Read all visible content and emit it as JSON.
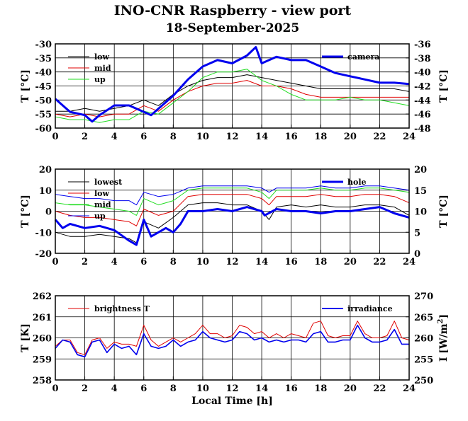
{
  "header": {
    "title": "INO-CNR Raspberry - view port",
    "subtitle": "18-September-2025"
  },
  "colors": {
    "black": "#000000",
    "red": "#e00000",
    "green": "#22dd22",
    "blue": "#0000ee"
  },
  "chart_data": [
    {
      "type": "line",
      "xlim": [
        0,
        24
      ],
      "xticks": [
        "0",
        "2",
        "4",
        "6",
        "8",
        "10",
        "12",
        "14",
        "16",
        "18",
        "20",
        "22",
        "24"
      ],
      "ylabel": "T [°C]",
      "ylim": [
        -60,
        -30
      ],
      "yticks": [
        "-30",
        "-35",
        "-40",
        "-45",
        "-50",
        "-55",
        "-60"
      ],
      "ylabel_right": "T [°C]",
      "ylim_right": [
        -48,
        -35
      ],
      "yticks_right": [
        "-36",
        "-38",
        "-40",
        "-42",
        "-44",
        "-46",
        "-48"
      ],
      "grid": true,
      "legend_left": [
        "low",
        "mid",
        "up"
      ],
      "legend_right": [
        "camera"
      ],
      "series": [
        {
          "name": "low",
          "color": "#000000",
          "axis": "left",
          "lw": 1,
          "x": [
            0,
            1,
            2,
            3,
            4,
            5,
            6,
            7,
            8,
            9,
            10,
            11,
            12,
            13,
            14,
            15,
            16,
            17,
            18,
            19,
            20,
            21,
            22,
            23,
            24
          ],
          "y": [
            -54,
            -54,
            -53,
            -54,
            -53,
            -52,
            -50,
            -52,
            -48,
            -45,
            -43,
            -42,
            -42,
            -41,
            -42,
            -43,
            -44,
            -45,
            -46,
            -46,
            -46,
            -46,
            -46,
            -46,
            -47
          ]
        },
        {
          "name": "mid",
          "color": "#e00000",
          "axis": "left",
          "lw": 1,
          "x": [
            0,
            1,
            2,
            3,
            4,
            5,
            6,
            7,
            8,
            9,
            10,
            11,
            12,
            13,
            14,
            15,
            16,
            17,
            18,
            19,
            20,
            21,
            22,
            23,
            24
          ],
          "y": [
            -55,
            -56,
            -55,
            -56,
            -55,
            -55,
            -52,
            -54,
            -50,
            -47,
            -45,
            -44,
            -44,
            -43,
            -45,
            -45,
            -46,
            -48,
            -49,
            -49,
            -49,
            -49,
            -49,
            -49,
            -49
          ]
        },
        {
          "name": "up",
          "color": "#22dd22",
          "axis": "left",
          "lw": 1,
          "x": [
            0,
            1,
            2,
            3,
            4,
            5,
            6,
            7,
            8,
            9,
            10,
            11,
            12,
            13,
            14,
            15,
            16,
            17,
            18,
            19,
            20,
            21,
            22,
            23,
            24
          ],
          "y": [
            -56,
            -57,
            -57,
            -58,
            -57,
            -57,
            -54,
            -55,
            -51,
            -47,
            -42,
            -40,
            -40,
            -39,
            -43,
            -45,
            -48,
            -50,
            -50,
            -50,
            -49,
            -50,
            -50,
            -51,
            -52
          ]
        },
        {
          "name": "camera",
          "color": "#0000ee",
          "axis": "right",
          "lw": 3,
          "x": [
            0,
            1,
            2,
            2.5,
            3,
            4,
            5,
            6,
            6.5,
            7,
            8,
            9,
            10,
            11,
            12,
            13,
            13.6,
            14,
            15,
            16,
            17,
            18,
            19,
            20,
            21,
            22,
            23,
            24
          ],
          "y": [
            -43.5,
            -45.5,
            -46,
            -47,
            -46,
            -44.5,
            -44.5,
            -45.5,
            -46,
            -45,
            -43,
            -40.5,
            -38.5,
            -37.5,
            -38,
            -36.8,
            -35.5,
            -38,
            -37,
            -37.5,
            -37.5,
            -38.5,
            -39.5,
            -40,
            -40.5,
            -41,
            -41,
            -41.2
          ]
        }
      ]
    },
    {
      "type": "line",
      "xlim": [
        0,
        24
      ],
      "xticks": [
        "0",
        "2",
        "4",
        "6",
        "8",
        "10",
        "12",
        "14",
        "16",
        "18",
        "20",
        "22",
        "24"
      ],
      "ylabel": "T [°C]",
      "ylim": [
        -20,
        20
      ],
      "yticks": [
        "20",
        "10",
        "0",
        "-10",
        "-20"
      ],
      "ylabel_right": "T [°C]",
      "ylim_right": [
        0,
        20
      ],
      "yticks_right": [
        "20",
        "15",
        "10",
        "5",
        "0"
      ],
      "grid": true,
      "legend_left": [
        "lowest",
        "low",
        "mid",
        "up"
      ],
      "legend_right": [
        "hole"
      ],
      "series": [
        {
          "name": "lowest",
          "color": "#000000",
          "axis": "left",
          "lw": 1,
          "x": [
            0,
            1,
            2,
            3,
            4,
            5,
            5.5,
            6,
            7,
            8,
            9,
            10,
            11,
            12,
            13,
            14,
            14.5,
            15,
            16,
            17,
            18,
            19,
            20,
            21,
            22,
            23,
            24
          ],
          "y": [
            -10,
            -12,
            -12,
            -11,
            -12,
            -13,
            -15,
            -5,
            -8,
            -3,
            3,
            4,
            4,
            3,
            3,
            0,
            -4,
            2,
            3,
            2,
            3,
            2,
            2,
            3,
            3,
            2,
            -2
          ]
        },
        {
          "name": "low",
          "color": "#e00000",
          "axis": "left",
          "lw": 1,
          "x": [
            0,
            1,
            2,
            3,
            4,
            5,
            5.5,
            6,
            7,
            8,
            9,
            10,
            11,
            12,
            13,
            14,
            14.5,
            15,
            16,
            17,
            18,
            19,
            20,
            21,
            22,
            23,
            24
          ],
          "y": [
            0,
            -2,
            -3,
            -3,
            -4,
            -5,
            -7,
            1,
            -2,
            0,
            7,
            8,
            8,
            8,
            8,
            6,
            3,
            7,
            7,
            7,
            8,
            7,
            7,
            8,
            8,
            7,
            4
          ]
        },
        {
          "name": "mid",
          "color": "#22dd22",
          "axis": "left",
          "lw": 1,
          "x": [
            0,
            1,
            2,
            3,
            4,
            5,
            5.5,
            6,
            7,
            8,
            9,
            10,
            11,
            12,
            13,
            14,
            14.5,
            15,
            16,
            17,
            18,
            19,
            20,
            21,
            22,
            23,
            24
          ],
          "y": [
            4,
            3,
            3,
            2,
            1,
            0,
            -2,
            6,
            3,
            5,
            10,
            11,
            11,
            11,
            11,
            9,
            6,
            10,
            10,
            10,
            11,
            10,
            10,
            11,
            11,
            10,
            9
          ]
        },
        {
          "name": "up",
          "color": "#0000ee",
          "axis": "left",
          "lw": 1,
          "x": [
            0,
            1,
            2,
            3,
            4,
            5,
            5.5,
            6,
            7,
            8,
            9,
            10,
            11,
            12,
            13,
            14,
            14.5,
            15,
            16,
            17,
            18,
            19,
            20,
            21,
            22,
            23,
            24
          ],
          "y": [
            8,
            7,
            6,
            6,
            5,
            5,
            3,
            9,
            7,
            8,
            11,
            12,
            12,
            12,
            12,
            11,
            9,
            11,
            11,
            11,
            12,
            11,
            11,
            12,
            12,
            11,
            10
          ]
        },
        {
          "name": "hole",
          "color": "#0000ee",
          "axis": "right",
          "lw": 3,
          "x": [
            0,
            0.5,
            1,
            2,
            3,
            4,
            5,
            5.5,
            6,
            6.5,
            7,
            7.5,
            8,
            8.5,
            9,
            10,
            11,
            12,
            13,
            14,
            14.2,
            15,
            16,
            17,
            18,
            19,
            20,
            21,
            22,
            23,
            24
          ],
          "y": [
            8,
            6,
            7,
            6,
            6.5,
            5.5,
            3,
            2,
            8,
            4,
            5,
            6,
            5,
            7,
            10,
            10,
            10.5,
            10,
            11,
            10,
            9,
            10.5,
            10,
            10,
            9.5,
            10,
            10,
            10.5,
            11,
            9.5,
            8.5
          ]
        }
      ]
    },
    {
      "type": "line",
      "xlim": [
        0,
        24
      ],
      "xticks": [
        "0",
        "2",
        "4",
        "6",
        "8",
        "10",
        "12",
        "14",
        "16",
        "18",
        "20",
        "22",
        "24"
      ],
      "xlabel": "Local Time [h]",
      "ylabel": "T [K]",
      "ylim": [
        258,
        262
      ],
      "yticks": [
        "262",
        "261",
        "260",
        "259",
        "258"
      ],
      "ylabel_right": "I [W/m",
      "ylabel_right_sup": "2",
      "ylabel_right_end": "]",
      "ylim_right": [
        250,
        270
      ],
      "yticks_right": [
        "270",
        "265",
        "260",
        "255",
        "250"
      ],
      "grid": true,
      "legend_left": [
        "brightness T"
      ],
      "legend_right": [
        "irradiance"
      ],
      "series": [
        {
          "name": "brightness T",
          "color": "#e00000",
          "axis": "left",
          "lw": 1,
          "x": [
            0,
            0.5,
            1,
            1.5,
            2,
            2.5,
            3,
            3.5,
            4,
            4.5,
            5,
            5.5,
            6,
            6.5,
            7,
            7.5,
            8,
            8.5,
            9,
            9.5,
            10,
            10.5,
            11,
            11.5,
            12,
            12.5,
            13,
            13.5,
            14,
            14.5,
            15,
            15.5,
            16,
            16.5,
            17,
            17.5,
            18,
            18.5,
            19,
            19.5,
            20,
            20.5,
            21,
            21.5,
            22,
            22.5,
            23,
            23.5,
            24
          ],
          "y": [
            259.6,
            259.9,
            259.9,
            259.3,
            259.2,
            259.9,
            260.0,
            259.5,
            259.8,
            259.7,
            259.7,
            259.6,
            260.6,
            259.9,
            259.6,
            259.8,
            260.0,
            259.8,
            260.0,
            260.2,
            260.6,
            260.2,
            260.2,
            260.0,
            260.1,
            260.6,
            260.5,
            260.2,
            260.3,
            260.0,
            260.2,
            260.0,
            260.2,
            260.1,
            260.0,
            260.7,
            260.8,
            260.1,
            260.0,
            260.1,
            260.1,
            260.8,
            260.2,
            260.0,
            260.0,
            260.1,
            260.8,
            260.0,
            259.9
          ]
        },
        {
          "name": "irradiance",
          "color": "#0000ee",
          "axis": "right",
          "lw": 1.6,
          "x": [
            0,
            0.5,
            1,
            1.5,
            2,
            2.5,
            3,
            3.5,
            4,
            4.5,
            5,
            5.5,
            6,
            6.5,
            7,
            7.5,
            8,
            8.5,
            9,
            9.5,
            10,
            10.5,
            11,
            11.5,
            12,
            12.5,
            13,
            13.5,
            14,
            14.5,
            15,
            15.5,
            16,
            16.5,
            17,
            17.5,
            18,
            18.5,
            19,
            19.5,
            20,
            20.5,
            21,
            21.5,
            22,
            22.5,
            23,
            23.5,
            24
          ],
          "y": [
            257.5,
            259.5,
            259,
            256,
            255.5,
            259,
            259.5,
            256.5,
            258.5,
            257.5,
            258,
            256,
            261,
            258,
            257.5,
            258,
            259.5,
            258,
            259,
            259.5,
            261.5,
            260,
            259.5,
            259,
            259.5,
            261.5,
            261,
            259.5,
            260,
            259,
            259.5,
            259,
            259.5,
            259.5,
            259,
            261,
            261.5,
            259,
            259,
            259.5,
            259.5,
            263,
            260,
            259,
            259,
            259.5,
            262,
            258.5,
            258.5
          ]
        }
      ]
    }
  ]
}
